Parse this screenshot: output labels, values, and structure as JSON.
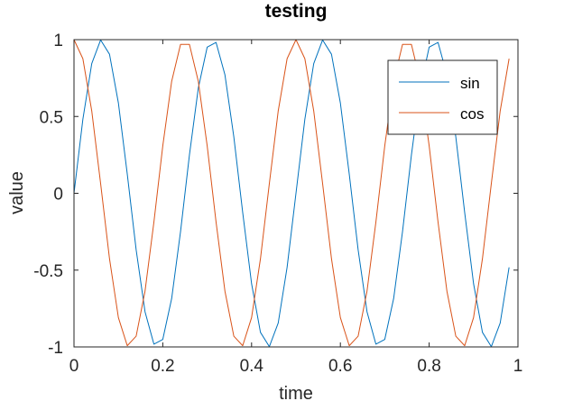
{
  "chart_data": {
    "type": "line",
    "title": "testing",
    "xlabel": "time",
    "ylabel": "value",
    "xlim": [
      0,
      1
    ],
    "ylim": [
      -1,
      1
    ],
    "xticks": [
      0,
      0.2,
      0.4,
      0.6,
      0.8,
      1
    ],
    "xtick_labels": [
      "0",
      "0.2",
      "0.4",
      "0.6",
      "0.8",
      "1"
    ],
    "yticks": [
      -1,
      -0.5,
      0,
      0.5,
      1
    ],
    "ytick_labels": [
      "-1",
      "-0.5",
      "0",
      "0.5",
      "1"
    ],
    "grid": false,
    "legend_position": "top-right",
    "x": [
      0,
      0.02,
      0.04,
      0.06,
      0.08,
      0.1,
      0.12,
      0.14,
      0.16,
      0.18,
      0.2,
      0.22,
      0.24,
      0.26,
      0.28,
      0.3,
      0.32,
      0.34,
      0.36,
      0.38,
      0.4,
      0.42,
      0.44,
      0.46,
      0.48,
      0.5,
      0.52,
      0.54,
      0.56,
      0.58,
      0.6,
      0.62,
      0.64,
      0.66,
      0.68,
      0.7,
      0.72,
      0.74,
      0.76,
      0.78,
      0.8,
      0.82,
      0.84,
      0.86,
      0.88,
      0.9,
      0.92,
      0.94,
      0.96,
      0.98
    ],
    "series": [
      {
        "name": "sin",
        "color": "#0072bd",
        "values": [
          0,
          0.482,
          0.844,
          0.998,
          0.905,
          0.588,
          0.125,
          -0.368,
          -0.771,
          -0.982,
          -0.951,
          -0.685,
          -0.249,
          0.249,
          0.685,
          0.951,
          0.982,
          0.771,
          0.368,
          -0.125,
          -0.588,
          -0.905,
          -0.998,
          -0.844,
          -0.482,
          0,
          0.482,
          0.844,
          0.998,
          0.905,
          0.588,
          0.125,
          -0.368,
          -0.771,
          -0.982,
          -0.951,
          -0.685,
          -0.249,
          0.249,
          0.685,
          0.951,
          0.982,
          0.771,
          0.368,
          -0.125,
          -0.588,
          -0.905,
          -0.998,
          -0.844,
          -0.482
        ]
      },
      {
        "name": "cos",
        "color": "#d95319",
        "values": [
          1,
          0.876,
          0.536,
          0.063,
          -0.426,
          -0.809,
          -0.992,
          -0.93,
          -0.637,
          -0.187,
          0.309,
          0.729,
          0.969,
          0.969,
          0.729,
          0.309,
          -0.187,
          -0.637,
          -0.93,
          -0.992,
          -0.809,
          -0.426,
          0.063,
          0.536,
          0.876,
          1,
          0.876,
          0.536,
          0.063,
          -0.426,
          -0.809,
          -0.992,
          -0.93,
          -0.637,
          -0.187,
          0.309,
          0.729,
          0.969,
          0.969,
          0.729,
          0.309,
          -0.187,
          -0.637,
          -0.93,
          -0.992,
          -0.809,
          -0.426,
          0.063,
          0.536,
          0.876
        ]
      }
    ]
  }
}
